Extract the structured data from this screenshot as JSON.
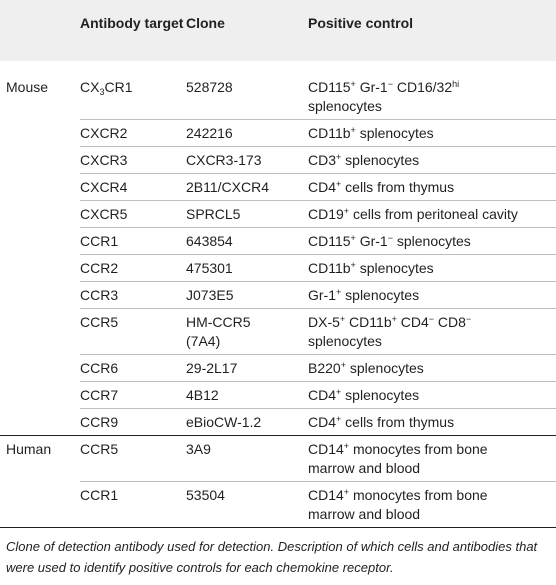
{
  "header": {
    "group": "",
    "target": "Antibody target",
    "clone": "Clone",
    "control": "Positive control"
  },
  "rows": [
    {
      "group": "Mouse",
      "target": [
        [
          "t",
          "CX"
        ],
        [
          "sub",
          "3"
        ],
        [
          "t",
          "CR1"
        ]
      ],
      "clone": "528728",
      "control": [
        [
          "t",
          "CD115"
        ],
        [
          "sup",
          "+"
        ],
        [
          "t",
          " Gr-1"
        ],
        [
          "sup",
          "−"
        ],
        [
          "t",
          " CD16/32"
        ],
        [
          "sup",
          "hi"
        ],
        [
          "t",
          " splenocytes"
        ]
      ]
    },
    {
      "group": "",
      "target": [
        [
          "t",
          "CXCR2"
        ]
      ],
      "clone": "242216",
      "control": [
        [
          "t",
          "CD11b"
        ],
        [
          "sup",
          "+"
        ],
        [
          "t",
          " splenocytes"
        ]
      ]
    },
    {
      "group": "",
      "target": [
        [
          "t",
          "CXCR3"
        ]
      ],
      "clone": "CXCR3-173",
      "control": [
        [
          "t",
          "CD3"
        ],
        [
          "sup",
          "+"
        ],
        [
          "t",
          " splenocytes"
        ]
      ]
    },
    {
      "group": "",
      "target": [
        [
          "t",
          "CXCR4"
        ]
      ],
      "clone": "2B11/CXCR4",
      "control": [
        [
          "t",
          "CD4"
        ],
        [
          "sup",
          "+"
        ],
        [
          "t",
          " cells from thymus"
        ]
      ]
    },
    {
      "group": "",
      "target": [
        [
          "t",
          "CXCR5"
        ]
      ],
      "clone": "SPRCL5",
      "control": [
        [
          "t",
          "CD19"
        ],
        [
          "sup",
          "+"
        ],
        [
          "t",
          " cells from peritoneal cavity"
        ]
      ]
    },
    {
      "group": "",
      "target": [
        [
          "t",
          "CCR1"
        ]
      ],
      "clone": "643854",
      "control": [
        [
          "t",
          "CD115"
        ],
        [
          "sup",
          "+"
        ],
        [
          "t",
          " Gr-1"
        ],
        [
          "sup",
          "−"
        ],
        [
          "t",
          " splenocytes"
        ]
      ]
    },
    {
      "group": "",
      "target": [
        [
          "t",
          "CCR2"
        ]
      ],
      "clone": "475301",
      "control": [
        [
          "t",
          "CD11b"
        ],
        [
          "sup",
          "+"
        ],
        [
          "t",
          " splenocytes"
        ]
      ]
    },
    {
      "group": "",
      "target": [
        [
          "t",
          "CCR3"
        ]
      ],
      "clone": "J073E5",
      "control": [
        [
          "t",
          "Gr-1"
        ],
        [
          "sup",
          "+"
        ],
        [
          "t",
          " splenocytes"
        ]
      ]
    },
    {
      "group": "",
      "target": [
        [
          "t",
          "CCR5"
        ]
      ],
      "clone": "HM-CCR5 (7A4)",
      "control": [
        [
          "t",
          "DX-5"
        ],
        [
          "sup",
          "+"
        ],
        [
          "t",
          " CD11b"
        ],
        [
          "sup",
          "+"
        ],
        [
          "t",
          " CD4"
        ],
        [
          "sup",
          "−"
        ],
        [
          "t",
          " CD8"
        ],
        [
          "sup",
          "−"
        ],
        [
          "t",
          " splenocytes"
        ]
      ]
    },
    {
      "group": "",
      "target": [
        [
          "t",
          "CCR6"
        ]
      ],
      "clone": "29-2L17",
      "control": [
        [
          "t",
          "B220"
        ],
        [
          "sup",
          "+"
        ],
        [
          "t",
          " splenocytes"
        ]
      ]
    },
    {
      "group": "",
      "target": [
        [
          "t",
          "CCR7"
        ]
      ],
      "clone": "4B12",
      "control": [
        [
          "t",
          "CD4"
        ],
        [
          "sup",
          "+"
        ],
        [
          "t",
          " splenocytes"
        ]
      ]
    },
    {
      "group": "",
      "target": [
        [
          "t",
          "CCR9"
        ]
      ],
      "clone": "eBioCW-1.2",
      "control": [
        [
          "t",
          "CD4"
        ],
        [
          "sup",
          "+"
        ],
        [
          "t",
          " cells from thymus"
        ]
      ]
    },
    {
      "group": "Human",
      "target": [
        [
          "t",
          "CCR5"
        ]
      ],
      "clone": "3A9",
      "control": [
        [
          "t",
          "CD14"
        ],
        [
          "sup",
          "+"
        ],
        [
          "t",
          " monocytes from bone marrow and blood"
        ]
      ]
    },
    {
      "group": "",
      "target": [
        [
          "t",
          "CCR1"
        ]
      ],
      "clone": "53504",
      "control": [
        [
          "t",
          "CD14"
        ],
        [
          "sup",
          "+"
        ],
        [
          "t",
          " monocytes from bone marrow and blood"
        ]
      ]
    }
  ],
  "caption": "Clone of detection antibody used for detection. Description of which cells and antibodies that were used to identify positive controls for each chemokine receptor.",
  "colors": {
    "header_bg": "#efeff0",
    "text": "#231f20",
    "rule": "#bcbec0"
  }
}
